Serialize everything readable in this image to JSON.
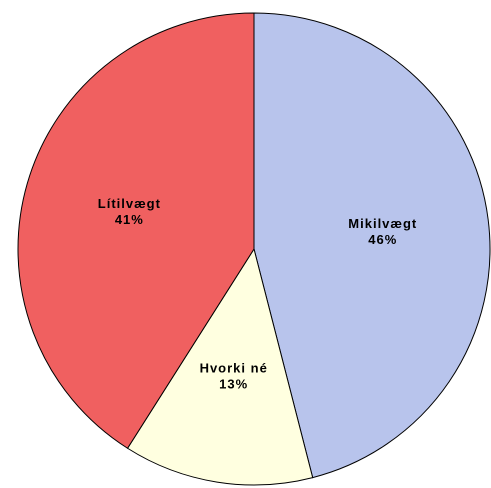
{
  "chart_data": {
    "type": "pie",
    "categories": [
      "Mikilvægt",
      "Hvorki né",
      "Lítilvægt"
    ],
    "values": [
      46,
      13,
      41
    ],
    "value_labels": [
      "46%",
      "13%",
      "41%"
    ],
    "colors": [
      "#b8c4ec",
      "#ffffe0",
      "#f06060"
    ]
  }
}
